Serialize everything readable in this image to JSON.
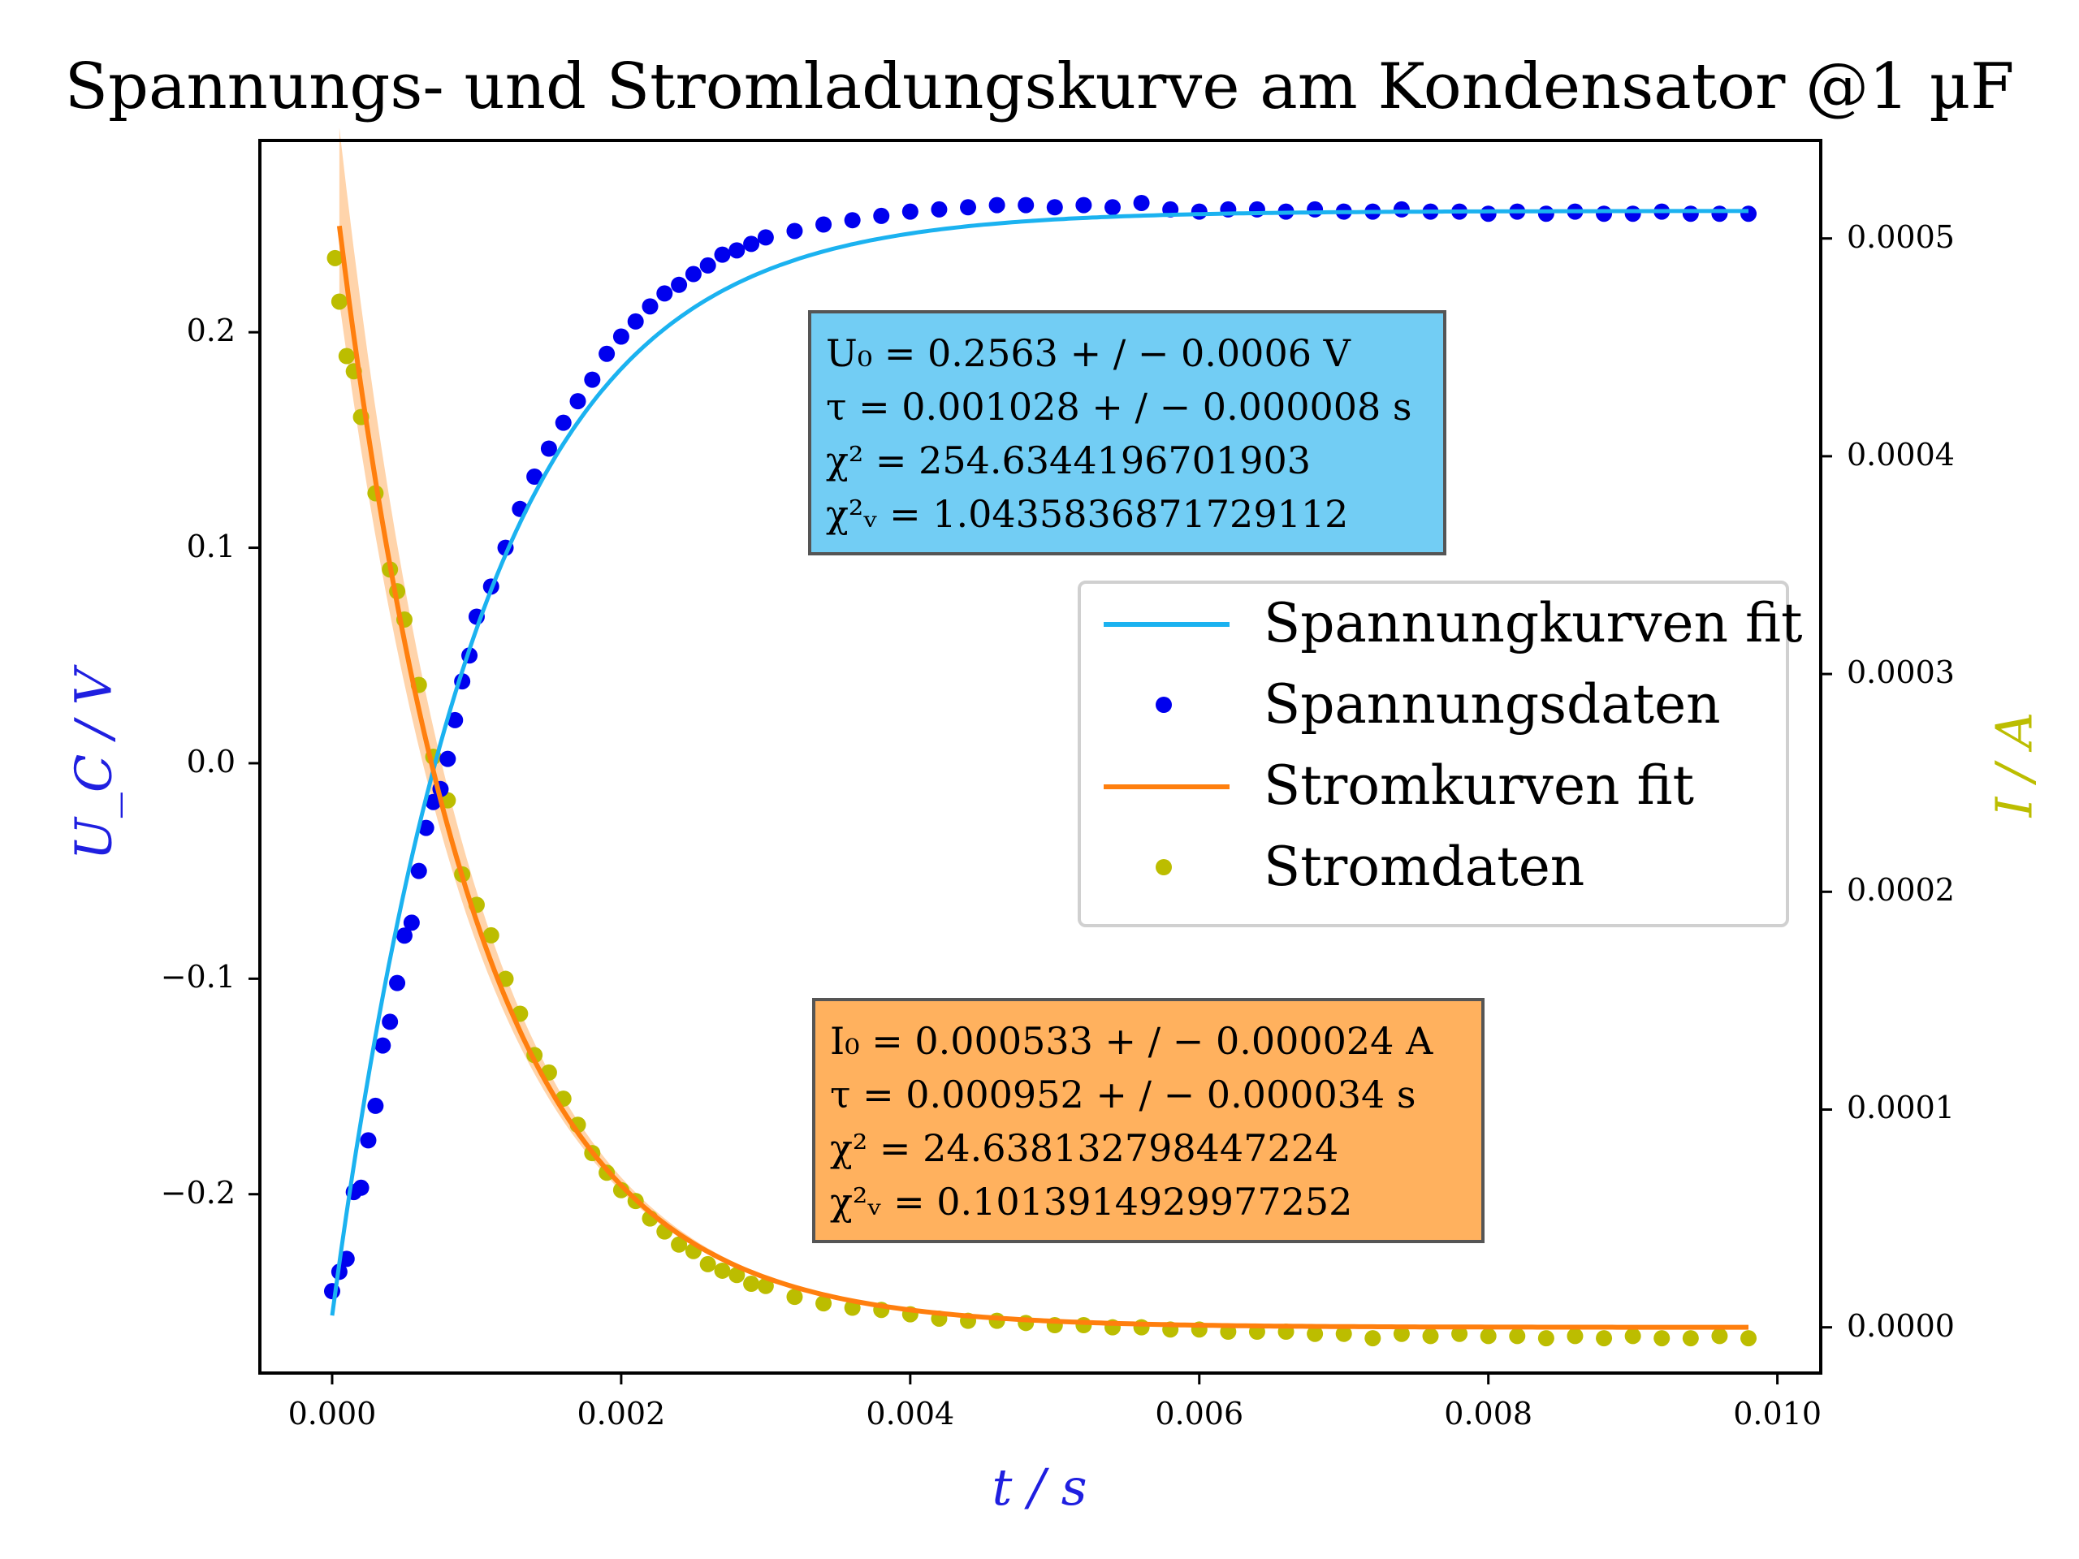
{
  "title": "Spannungs- und Stromladungskurve am Kondensator @1 µF",
  "chart_data": {
    "type": "scatter",
    "title": "Spannungs- und Stromladungskurve am Kondensator @1 µF",
    "xlabel": "t / s",
    "ylabel_left": "U_C / V",
    "ylabel_right": "I / A",
    "xlim": [
      -0.0005,
      0.0103
    ],
    "ylim_left": [
      -0.283,
      0.289
    ],
    "ylim_right": [
      -2.1e-05,
      0.000545
    ],
    "x_ticks": [
      "0.000",
      "0.002",
      "0.004",
      "0.006",
      "0.008",
      "0.010"
    ],
    "y_left_ticks": [
      "−0.2",
      "−0.1",
      "0.0",
      "0.1",
      "0.2"
    ],
    "y_right_ticks": [
      "0.0000",
      "0.0001",
      "0.0002",
      "0.0003",
      "0.0004",
      "0.0005"
    ],
    "grid": false,
    "legend_position": "center-right",
    "series": [
      {
        "name": "Spannungkurven fit",
        "kind": "line",
        "axis": "left",
        "color": "#1bb2f0",
        "model": "U_C(t) = U_0 (1 - 2 e^{-t/tau})",
        "U0": 0.2563,
        "tau": 0.001028
      },
      {
        "name": "Spannungsdaten",
        "kind": "scatter",
        "axis": "left",
        "color": "#0000ee",
        "points": [
          [
            0.0,
            -0.245
          ],
          [
            5e-05,
            -0.236
          ],
          [
            0.0001,
            -0.23
          ],
          [
            0.00015,
            -0.199
          ],
          [
            0.0002,
            -0.197
          ],
          [
            0.00025,
            -0.175
          ],
          [
            0.0003,
            -0.159
          ],
          [
            0.00035,
            -0.131
          ],
          [
            0.0004,
            -0.12
          ],
          [
            0.00045,
            -0.102
          ],
          [
            0.0005,
            -0.08
          ],
          [
            0.00055,
            -0.074
          ],
          [
            0.0006,
            -0.05
          ],
          [
            0.00065,
            -0.03
          ],
          [
            0.0007,
            -0.018
          ],
          [
            0.00075,
            -0.012
          ],
          [
            0.0008,
            0.002
          ],
          [
            0.00085,
            0.02
          ],
          [
            0.0009,
            0.038
          ],
          [
            0.00095,
            0.05
          ],
          [
            0.001,
            0.068
          ],
          [
            0.0011,
            0.082
          ],
          [
            0.0012,
            0.1
          ],
          [
            0.0013,
            0.118
          ],
          [
            0.0014,
            0.133
          ],
          [
            0.0015,
            0.146
          ],
          [
            0.0016,
            0.158
          ],
          [
            0.0017,
            0.168
          ],
          [
            0.0018,
            0.178
          ],
          [
            0.0019,
            0.19
          ],
          [
            0.002,
            0.198
          ],
          [
            0.0021,
            0.205
          ],
          [
            0.0022,
            0.212
          ],
          [
            0.0023,
            0.218
          ],
          [
            0.0024,
            0.222
          ],
          [
            0.0025,
            0.227
          ],
          [
            0.0026,
            0.231
          ],
          [
            0.0027,
            0.236
          ],
          [
            0.0028,
            0.238
          ],
          [
            0.0029,
            0.241
          ],
          [
            0.003,
            0.244
          ],
          [
            0.0032,
            0.247
          ],
          [
            0.0034,
            0.25
          ],
          [
            0.0036,
            0.252
          ],
          [
            0.0038,
            0.254
          ],
          [
            0.004,
            0.256
          ],
          [
            0.0042,
            0.257
          ],
          [
            0.0044,
            0.258
          ],
          [
            0.0046,
            0.259
          ],
          [
            0.0048,
            0.259
          ],
          [
            0.005,
            0.258
          ],
          [
            0.0052,
            0.259
          ],
          [
            0.0054,
            0.258
          ],
          [
            0.0056,
            0.26
          ],
          [
            0.0058,
            0.257
          ],
          [
            0.006,
            0.256
          ],
          [
            0.0062,
            0.257
          ],
          [
            0.0064,
            0.257
          ],
          [
            0.0066,
            0.256
          ],
          [
            0.0068,
            0.257
          ],
          [
            0.007,
            0.256
          ],
          [
            0.0072,
            0.256
          ],
          [
            0.0074,
            0.257
          ],
          [
            0.0076,
            0.256
          ],
          [
            0.0078,
            0.256
          ],
          [
            0.008,
            0.255
          ],
          [
            0.0082,
            0.256
          ],
          [
            0.0084,
            0.255
          ],
          [
            0.0086,
            0.256
          ],
          [
            0.0088,
            0.255
          ],
          [
            0.009,
            0.255
          ],
          [
            0.0092,
            0.256
          ],
          [
            0.0094,
            0.255
          ],
          [
            0.0096,
            0.255
          ],
          [
            0.0098,
            0.255
          ]
        ]
      },
      {
        "name": "Stromkurven fit",
        "kind": "line",
        "axis": "right",
        "color": "#ff7f0e",
        "model": "I(t) = I_0 e^{-t/tau}",
        "I0": 0.000533,
        "tau": 0.000952
      },
      {
        "name": "Stromdaten",
        "kind": "scatter",
        "axis": "right",
        "color": "#bcbd00",
        "points": [
          [
            2e-05,
            0.000491
          ],
          [
            5e-05,
            0.000471
          ],
          [
            0.0001,
            0.000446
          ],
          [
            0.00015,
            0.000439
          ],
          [
            0.0002,
            0.000418
          ],
          [
            0.0003,
            0.000383
          ],
          [
            0.0004,
            0.000348
          ],
          [
            0.00045,
            0.000338
          ],
          [
            0.0005,
            0.000325
          ],
          [
            0.0006,
            0.000295
          ],
          [
            0.0007,
            0.000262
          ],
          [
            0.0008,
            0.000242
          ],
          [
            0.0009,
            0.000208
          ],
          [
            0.001,
            0.000194
          ],
          [
            0.0011,
            0.00018
          ],
          [
            0.0012,
            0.00016
          ],
          [
            0.0013,
            0.000144
          ],
          [
            0.0014,
            0.000125
          ],
          [
            0.0015,
            0.000117
          ],
          [
            0.0016,
            0.000105
          ],
          [
            0.0017,
            9.3e-05
          ],
          [
            0.0018,
            8e-05
          ],
          [
            0.0019,
            7.1e-05
          ],
          [
            0.002,
            6.3e-05
          ],
          [
            0.0021,
            5.8e-05
          ],
          [
            0.0022,
            5e-05
          ],
          [
            0.0023,
            4.4e-05
          ],
          [
            0.0024,
            3.8e-05
          ],
          [
            0.0025,
            3.5e-05
          ],
          [
            0.0026,
            2.9e-05
          ],
          [
            0.0027,
            2.6e-05
          ],
          [
            0.0028,
            2.4e-05
          ],
          [
            0.0029,
            2e-05
          ],
          [
            0.003,
            1.9e-05
          ],
          [
            0.0032,
            1.4e-05
          ],
          [
            0.0034,
            1.1e-05
          ],
          [
            0.0036,
            9e-06
          ],
          [
            0.0038,
            8e-06
          ],
          [
            0.004,
            6e-06
          ],
          [
            0.0042,
            4e-06
          ],
          [
            0.0044,
            3e-06
          ],
          [
            0.0046,
            3e-06
          ],
          [
            0.0048,
            2e-06
          ],
          [
            0.005,
            1e-06
          ],
          [
            0.0052,
            1e-06
          ],
          [
            0.0054,
            0.0
          ],
          [
            0.0056,
            0.0
          ],
          [
            0.0058,
            -1e-06
          ],
          [
            0.006,
            -1e-06
          ],
          [
            0.0062,
            -2e-06
          ],
          [
            0.0064,
            -2e-06
          ],
          [
            0.0066,
            -2e-06
          ],
          [
            0.0068,
            -3e-06
          ],
          [
            0.007,
            -3e-06
          ],
          [
            0.0072,
            -5e-06
          ],
          [
            0.0074,
            -3e-06
          ],
          [
            0.0076,
            -4e-06
          ],
          [
            0.0078,
            -3e-06
          ],
          [
            0.008,
            -4e-06
          ],
          [
            0.0082,
            -4e-06
          ],
          [
            0.0084,
            -5e-06
          ],
          [
            0.0086,
            -4e-06
          ],
          [
            0.0088,
            -5e-06
          ],
          [
            0.009,
            -4e-06
          ],
          [
            0.0092,
            -5e-06
          ],
          [
            0.0094,
            -5e-06
          ],
          [
            0.0096,
            -4e-06
          ],
          [
            0.0098,
            -5e-06
          ]
        ]
      }
    ],
    "annotations": {
      "voltage_box": {
        "lines": [
          "U₀ = 0.2563 + / − 0.0006 V",
          "τ = 0.001028 + / − 0.000008 s",
          "χ² = 254.6344196701903",
          "χ²ᵥ = 1.0435836871729112"
        ],
        "background": "#72cdf4"
      },
      "current_box": {
        "lines": [
          "I₀ = 0.000533 + / − 0.000024 A",
          "τ = 0.000952 + / − 0.000034 s",
          "χ² = 24.638132798447224",
          "χ²ᵥ = 0.1013914929977252"
        ],
        "background": "#ffb15e"
      }
    }
  },
  "colors": {
    "voltage_fit": "#1bb2f0",
    "voltage_data": "#0000ee",
    "current_fit": "#ff7f0e",
    "current_band": "#ffb066",
    "current_data": "#bcbd00",
    "x_label": "#1f1fe0",
    "y_left_label": "#1f1fe0",
    "y_right_label": "#bcbd00"
  }
}
